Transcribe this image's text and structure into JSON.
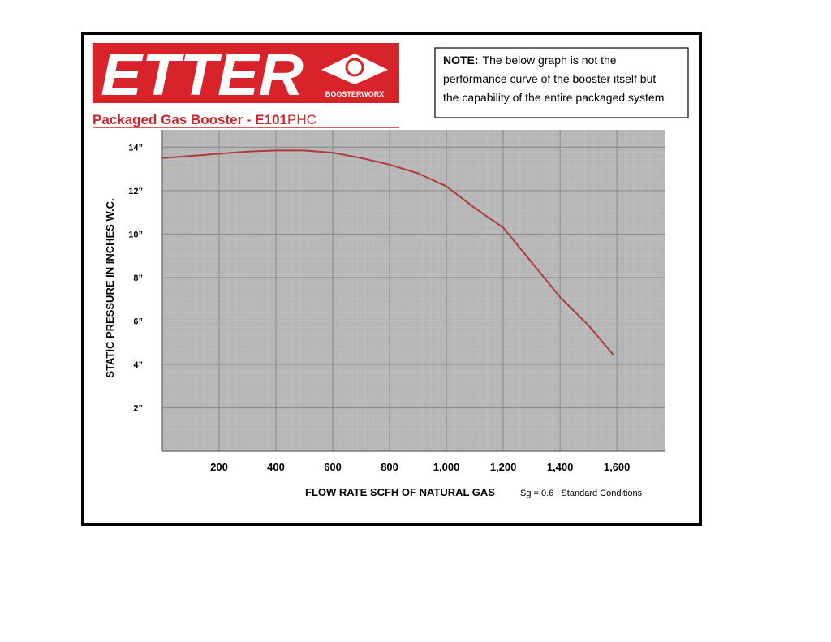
{
  "header": {
    "logo": "ETTER",
    "brand": "BOOSTERWORX",
    "product": "Packaged Gas Booster - E101",
    "product_suffix": "PHC"
  },
  "note": {
    "label": "NOTE:",
    "lines": [
      "The below graph is not the",
      "performance curve of the booster itself but",
      "the capability of the entire packaged system"
    ]
  },
  "chart_data": {
    "type": "line",
    "x_label": "FLOW RATE SCFH OF NATURAL GAS",
    "x_note": "Sg = 0.6   Standard Conditions",
    "y_label": "STATIC PRESSURE IN INCHES W.C.",
    "x": [
      0,
      100,
      200,
      300,
      400,
      500,
      600,
      700,
      800,
      900,
      1000,
      1100,
      1200,
      1300,
      1400,
      1500,
      1590
    ],
    "values": [
      13.5,
      13.6,
      13.7,
      13.8,
      13.85,
      13.85,
      13.75,
      13.5,
      13.2,
      12.8,
      12.2,
      11.2,
      10.3,
      8.7,
      7.1,
      5.8,
      4.4
    ],
    "color": "#b03a3a",
    "xlim": [
      0,
      1771
    ],
    "ylim": [
      0,
      14.8
    ],
    "xticks": [
      200,
      400,
      600,
      800,
      {
        "value": 1000,
        "label": "1,000"
      },
      {
        "value": 1200,
        "label": "1,200"
      },
      {
        "value": 1400,
        "label": "1,400"
      },
      {
        "value": 1600,
        "label": "1,600"
      }
    ],
    "yticks": [
      {
        "value": 2,
        "label": "2”"
      },
      {
        "value": 4,
        "label": "4”"
      },
      {
        "value": 6,
        "label": "6”"
      },
      {
        "value": 8,
        "label": "8”"
      },
      {
        "value": 10,
        "label": "10”"
      },
      {
        "value": 12,
        "label": "12”"
      },
      {
        "value": 14,
        "label": "14”"
      }
    ],
    "grid": true
  }
}
